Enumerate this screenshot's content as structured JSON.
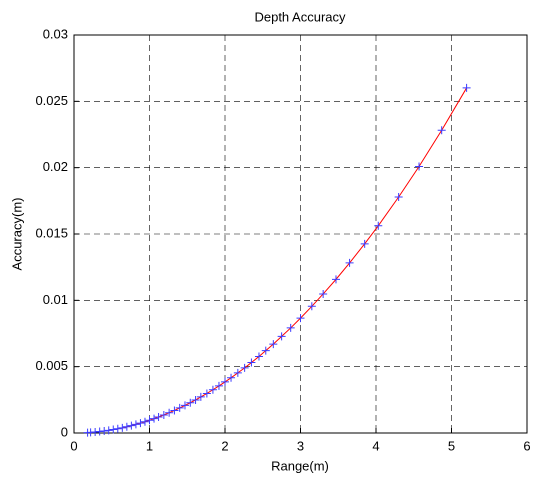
{
  "chart_data": {
    "type": "line",
    "title": "Depth Accuracy",
    "x_label": "Range(m)",
    "y_label": "Accuracy(m)",
    "xlim": [
      0,
      6
    ],
    "xticks": [
      0,
      1,
      2,
      3,
      4,
      5,
      6
    ],
    "ylim": [
      0,
      0.03
    ],
    "yticks": [
      0,
      0.005,
      0.01,
      0.015,
      0.02,
      0.025,
      0.03
    ],
    "grid": true,
    "x": [
      0.18,
      0.22,
      0.28,
      0.34,
      0.4,
      0.46,
      0.52,
      0.58,
      0.64,
      0.7,
      0.76,
      0.82,
      0.88,
      0.94,
      1.0,
      1.06,
      1.12,
      1.19,
      1.26,
      1.33,
      1.4,
      1.47,
      1.54,
      1.61,
      1.68,
      1.76,
      1.84,
      1.92,
      2.0,
      2.08,
      2.17,
      2.26,
      2.35,
      2.45,
      2.54,
      2.64,
      2.75,
      2.87,
      3.0,
      3.15,
      3.3,
      3.47,
      3.65,
      3.85,
      4.03,
      4.3,
      4.57,
      4.87,
      5.2
    ],
    "series": [
      {
        "color": "#ff0000",
        "marker_color": "#3b3bff",
        "values": [
          3e-05,
          5e-05,
          8e-05,
          0.00011,
          0.00015,
          0.0002,
          0.00026,
          0.00032,
          0.00039,
          0.00047,
          0.00056,
          0.00065,
          0.00074,
          0.00085,
          0.00096,
          0.00108,
          0.00121,
          0.00136,
          0.00153,
          0.0017,
          0.00189,
          0.00208,
          0.00228,
          0.00249,
          0.00272,
          0.00298,
          0.00326,
          0.00355,
          0.00385,
          0.00416,
          0.00453,
          0.00491,
          0.00531,
          0.00577,
          0.00621,
          0.0067,
          0.00728,
          0.00792,
          0.00866,
          0.00955,
          0.01048,
          0.01158,
          0.01282,
          0.01426,
          0.01562,
          0.01779,
          0.02009,
          0.02282,
          0.02601
        ]
      }
    ]
  }
}
